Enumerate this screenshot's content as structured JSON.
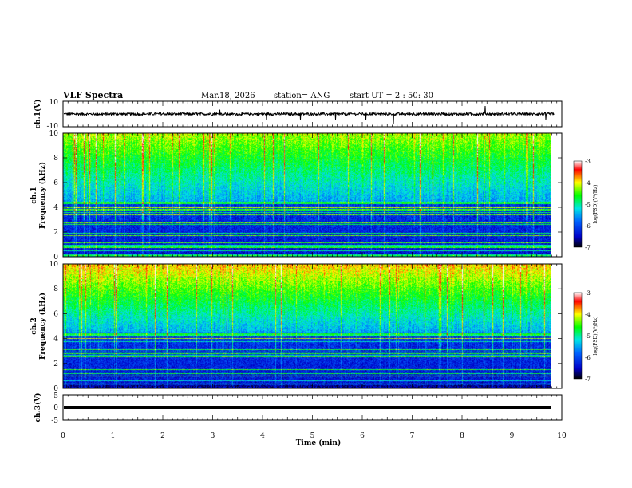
{
  "header": {
    "title": "VLF Spectra",
    "date": "Mar.18, 2026",
    "station": "station= ANG",
    "start": "start  UT =  2 : 50: 30"
  },
  "chart_data": [
    {
      "type": "line",
      "panel": "ch1-waveform",
      "ylabel": "ch.1(V)",
      "ylim": [
        -10,
        10
      ],
      "yticks": [
        "10",
        "-10"
      ],
      "xlim": [
        0,
        10
      ],
      "approx_level": 0,
      "approx_noise_amplitude": 1.5,
      "data_end": 9.85
    },
    {
      "type": "heatmap",
      "panel": "ch1-spectrogram",
      "ylabel": "Frequency (kHz)",
      "ylabel_prefix": "ch.1",
      "ylim": [
        0,
        10
      ],
      "yticks": [
        "0",
        "2",
        "4",
        "6",
        "8",
        "10"
      ],
      "xlim": [
        0,
        10
      ],
      "data_end": 9.85,
      "colorbar": {
        "label": "log(PSD)(V²/Hz)",
        "range": [
          -7,
          -3
        ],
        "ticks": [
          "-3",
          "-4",
          "-5",
          "-6",
          "-7"
        ]
      }
    },
    {
      "type": "heatmap",
      "panel": "ch2-spectrogram",
      "ylabel": "Frequency (kHz)",
      "ylabel_prefix": "ch.2",
      "ylim": [
        0,
        10
      ],
      "yticks": [
        "0",
        "2",
        "4",
        "6",
        "8",
        "10"
      ],
      "xlim": [
        0,
        10
      ],
      "data_end": 9.85,
      "colorbar": {
        "label": "log(PSD)(V²/Hz)",
        "range": [
          -7,
          -3
        ],
        "ticks": [
          "-3",
          "-4",
          "-5",
          "-6",
          "-7"
        ]
      }
    },
    {
      "type": "line",
      "panel": "ch3-waveform",
      "ylabel": "ch.3(V)",
      "ylim": [
        -5,
        5
      ],
      "yticks": [
        "5",
        "0",
        "-5"
      ],
      "xlim": [
        0,
        10
      ],
      "approx_level": 0,
      "data_end": 9.85,
      "xlabel": "Time (min)",
      "xticks": [
        "0",
        "1",
        "2",
        "3",
        "4",
        "5",
        "6",
        "7",
        "8",
        "9",
        "10"
      ]
    }
  ],
  "colors": {
    "colormap": [
      "#000000",
      "#0000c8",
      "#0064ff",
      "#00e6e6",
      "#00ff00",
      "#ffff00",
      "#ff0000",
      "#ffffff"
    ]
  }
}
